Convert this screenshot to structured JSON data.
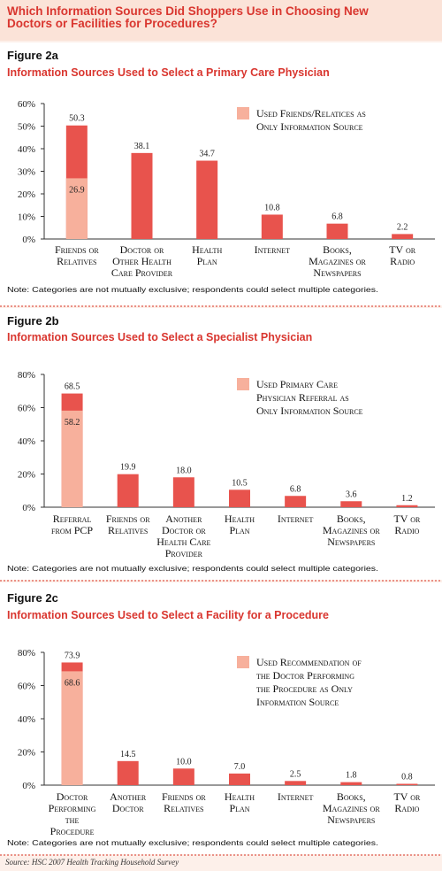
{
  "header": {
    "title": "Which Information Sources Did Shoppers Use in Choosing New\nDoctors or Facilities for Procedures?"
  },
  "source": "Source: HSC 2007 Health Tracking Household Survey",
  "chart_data": [
    {
      "type": "bar",
      "figure": "Figure 2a",
      "title": "Information Sources Used to Select a Primary Care Physician",
      "categories": [
        "Friends or\nRelatives",
        "Doctor or\nOther Health\nCare Provider",
        "Health\nPlan",
        "Internet",
        "Books,\nMagazines or\nNewspapers",
        "TV or\nRadio"
      ],
      "values": [
        50.3,
        38.1,
        34.7,
        10.8,
        6.8,
        2.2
      ],
      "color": "#e8534d",
      "highlight": {
        "name": "Used Friends/Relatices as\nOnly Information Source",
        "color": "#f7b09c",
        "values": [
          26.9,
          null,
          null,
          null,
          null,
          null
        ]
      },
      "ylim": [
        0,
        60
      ],
      "yticks": [
        {
          "value": 0,
          "label": "0%"
        },
        {
          "value": 10,
          "label": "10%"
        },
        {
          "value": 20,
          "label": "20%"
        },
        {
          "value": 30,
          "label": "30%"
        },
        {
          "value": 40,
          "label": "40%"
        },
        {
          "value": 50,
          "label": "50%"
        },
        {
          "value": 60,
          "label": "60%"
        }
      ],
      "note": "Note: Categories are not mutually exclusive; respondents could select multiple categories."
    },
    {
      "type": "bar",
      "figure": "Figure 2b",
      "title": "Information Sources Used to Select a Specialist Physician",
      "categories": [
        "Referral\nfrom PCP",
        "Friends or\nRelatives",
        "Another\nDoctor or\nHealth Care\nProvider",
        "Health\nPlan",
        "Internet",
        "Books,\nMagazines or\nNewspapers",
        "TV or\nRadio"
      ],
      "values": [
        68.5,
        19.9,
        18.0,
        10.5,
        6.8,
        3.6,
        1.2
      ],
      "value_labels": [
        "68.5",
        "19.9",
        "18.0",
        "10.5",
        "6.8",
        "3.6",
        "1.2"
      ],
      "color": "#e8534d",
      "highlight": {
        "name": "Used Primary Care\nPhysician Referral as\nOnly Information Source",
        "color": "#f7b09c",
        "values": [
          58.2,
          null,
          null,
          null,
          null,
          null,
          null
        ]
      },
      "ylim": [
        0,
        80
      ],
      "yticks": [
        {
          "value": 0,
          "label": "0%"
        },
        {
          "value": 20,
          "label": "20%"
        },
        {
          "value": 40,
          "label": "40%"
        },
        {
          "value": 60,
          "label": "60%"
        },
        {
          "value": 80,
          "label": "80%"
        }
      ],
      "note": "Note: Categories are not mutually exclusive; respondents could select multiple categories."
    },
    {
      "type": "bar",
      "figure": "Figure 2c",
      "title": "Information Sources Used to Select a Facility for a Procedure",
      "categories": [
        "Doctor\nPerforming\nthe\nProcedure",
        "Another\nDoctor",
        "Friends or\nRelatives",
        "Health\nPlan",
        "Internet",
        "Books,\nMagazines or\nNewspapers",
        "TV or\nRadio"
      ],
      "values": [
        73.9,
        14.5,
        10.0,
        7.0,
        2.5,
        1.8,
        0.8
      ],
      "value_labels": [
        "73.9",
        "14.5",
        "10.0",
        "7.0",
        "2.5",
        "1.8",
        "0.8"
      ],
      "color": "#e8534d",
      "highlight": {
        "name": "Used Recommendation of\nthe Doctor Performing\nthe Procedure as Only\nInformation Source",
        "color": "#f7b09c",
        "values": [
          68.6,
          null,
          null,
          null,
          null,
          null,
          null
        ]
      },
      "ylim": [
        0,
        80
      ],
      "yticks": [
        {
          "value": 0,
          "label": "0%"
        },
        {
          "value": 20,
          "label": "20%"
        },
        {
          "value": 40,
          "label": "40%"
        },
        {
          "value": 60,
          "label": "60%"
        },
        {
          "value": 80,
          "label": "80%"
        }
      ],
      "note": "Note: Categories are not mutually exclusive; respondents could select multiple categories."
    }
  ]
}
